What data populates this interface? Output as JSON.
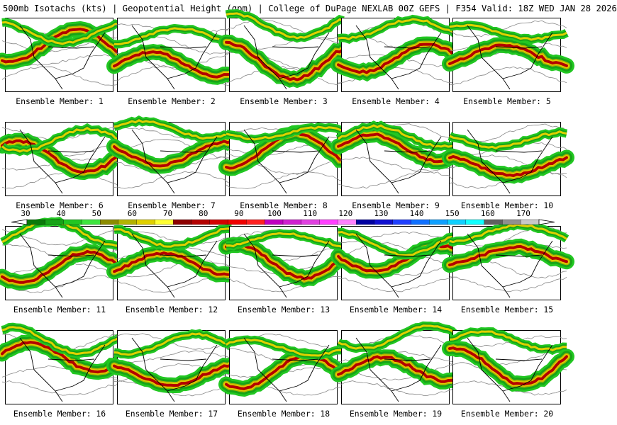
{
  "header": {
    "title": "500mb Isotachs (kts) | Geopotential Height (gpm) | College of DuPage NEXLAB   00Z GEFS | F354 Valid: 18Z WED JAN 28 2026"
  },
  "members": [
    {
      "label": "Ensemble Member: 1"
    },
    {
      "label": "Ensemble Member: 2"
    },
    {
      "label": "Ensemble Member: 3"
    },
    {
      "label": "Ensemble Member: 4"
    },
    {
      "label": "Ensemble Member: 5"
    },
    {
      "label": "Ensemble Member: 6"
    },
    {
      "label": "Ensemble Member: 7"
    },
    {
      "label": "Ensemble Member: 8"
    },
    {
      "label": "Ensemble Member: 9"
    },
    {
      "label": "Ensemble Member: 10"
    },
    {
      "label": "Ensemble Member: 11"
    },
    {
      "label": "Ensemble Member: 12"
    },
    {
      "label": "Ensemble Member: 13"
    },
    {
      "label": "Ensemble Member: 14"
    },
    {
      "label": "Ensemble Member: 15"
    },
    {
      "label": "Ensemble Member: 16"
    },
    {
      "label": "Ensemble Member: 17"
    },
    {
      "label": "Ensemble Member: 18"
    },
    {
      "label": "Ensemble Member: 19"
    },
    {
      "label": "Ensemble Member: 20"
    }
  ],
  "colorbar": {
    "ticks": [
      "30",
      "40",
      "50",
      "60",
      "70",
      "80",
      "90",
      "100",
      "110",
      "120",
      "130",
      "140",
      "150",
      "160",
      "170"
    ],
    "colors": [
      "#0a7a0a",
      "#17a317",
      "#22c722",
      "#3fe63f",
      "#8c8c00",
      "#b3b300",
      "#e0d000",
      "#ffff33",
      "#8c0000",
      "#b30000",
      "#d40000",
      "#f00000",
      "#ff2020",
      "#c000c0",
      "#d020d0",
      "#e040e0",
      "#ff40ff",
      "#ff80ff",
      "#0000a0",
      "#1010d0",
      "#2040ff",
      "#1070ff",
      "#10a0ff",
      "#10d0ff",
      "#10ffff",
      "#606060",
      "#909090",
      "#c8c8c8"
    ]
  }
}
